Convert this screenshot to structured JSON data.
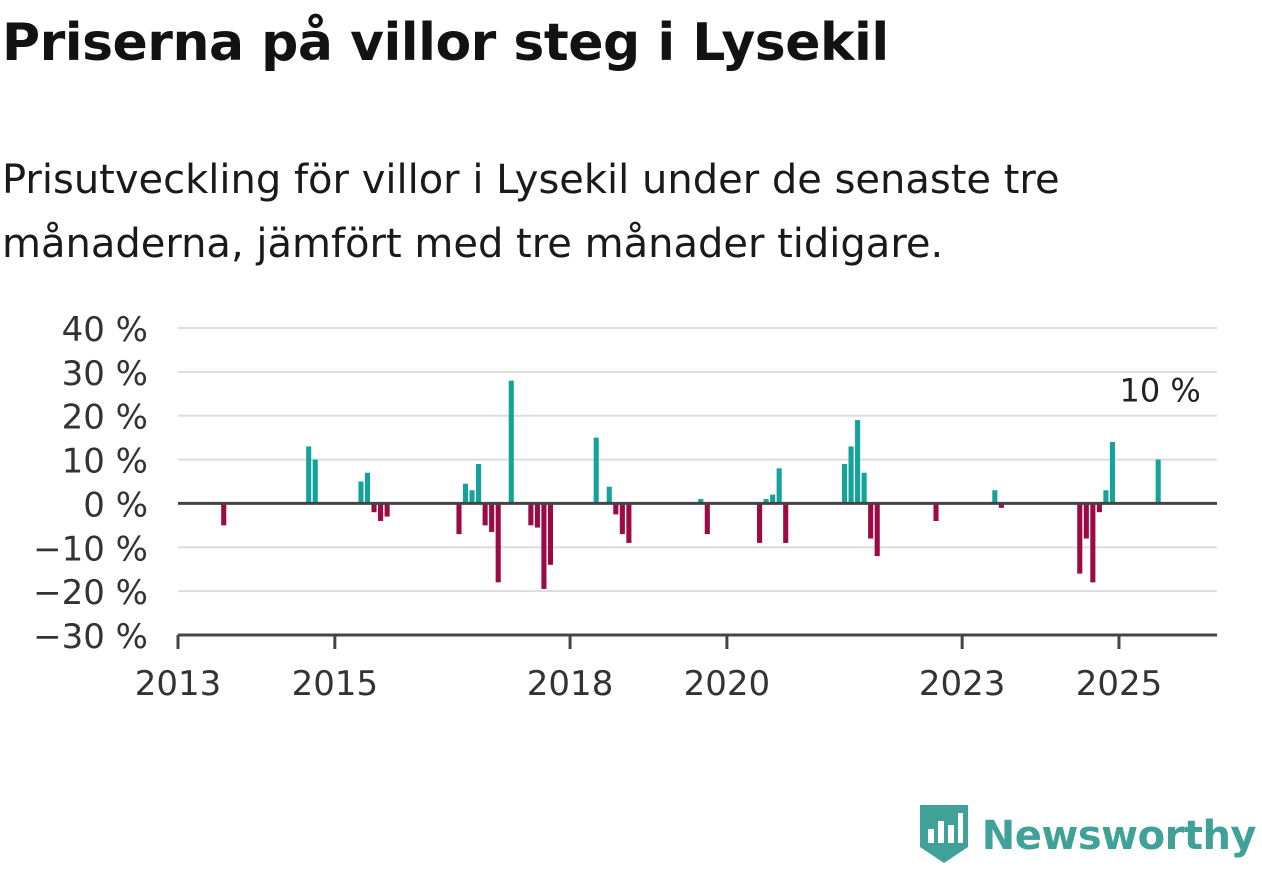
{
  "title": "Priserna på villor steg i Lysekil",
  "subtitle": "Prisutveckling för villor i Lysekil under de senaste tre månaderna, jämfört med tre månader tidigare.",
  "brand": {
    "name": "Newsworthy",
    "logo_icon": "newsworthy-logo-icon"
  },
  "colors": {
    "positive": "#13a39a",
    "negative": "#9b0a45",
    "grid": "#dddddd",
    "axis": "#444444",
    "brand": "#3fa197"
  },
  "chart_data": {
    "type": "bar",
    "ylim": [
      -30,
      40
    ],
    "yticks": [
      -30,
      -20,
      -10,
      0,
      10,
      20,
      30,
      40
    ],
    "ytick_labels": [
      "−30 %",
      "−20 %",
      "−10 %",
      "0 %",
      "10 %",
      "20 %",
      "30 %",
      "40 %"
    ],
    "xlim": [
      "2013-01",
      "2026-04"
    ],
    "xticks": [
      "2013-01",
      "2015-01",
      "2018-01",
      "2020-01",
      "2023-01",
      "2025-01"
    ],
    "xtick_labels": [
      "2013",
      "2015",
      "2018",
      "2020",
      "2023",
      "2025"
    ],
    "grid": true,
    "annotation": {
      "x": "2025-07",
      "label": "10 %"
    },
    "x": [
      "2013-08",
      "2014-09",
      "2014-10",
      "2015-05",
      "2015-06",
      "2015-07",
      "2015-08",
      "2015-09",
      "2016-08",
      "2016-09",
      "2016-10",
      "2016-11",
      "2016-12",
      "2017-01",
      "2017-02",
      "2017-04",
      "2017-07",
      "2017-08",
      "2017-09",
      "2017-10",
      "2018-05",
      "2018-07",
      "2018-08",
      "2018-09",
      "2018-10",
      "2019-09",
      "2019-10",
      "2020-06",
      "2020-07",
      "2020-08",
      "2020-09",
      "2020-10",
      "2021-07",
      "2021-08",
      "2021-09",
      "2021-10",
      "2021-11",
      "2021-12",
      "2022-09",
      "2023-06",
      "2023-07",
      "2024-07",
      "2024-08",
      "2024-09",
      "2024-10",
      "2024-11",
      "2024-12",
      "2025-07"
    ],
    "values": [
      -5,
      13,
      10,
      5,
      7,
      -2,
      -4,
      -3,
      -7,
      4.5,
      3,
      9,
      -5,
      -6.5,
      -18,
      28,
      -5,
      -5.5,
      -19.5,
      -14,
      15,
      3.8,
      -2.5,
      -7,
      -9,
      1,
      -7,
      -9,
      1,
      2,
      8,
      -9,
      9,
      13,
      19,
      7,
      -8,
      -12,
      -4,
      3,
      -1,
      -16,
      -8,
      -18,
      -2,
      3,
      14,
      10
    ]
  }
}
